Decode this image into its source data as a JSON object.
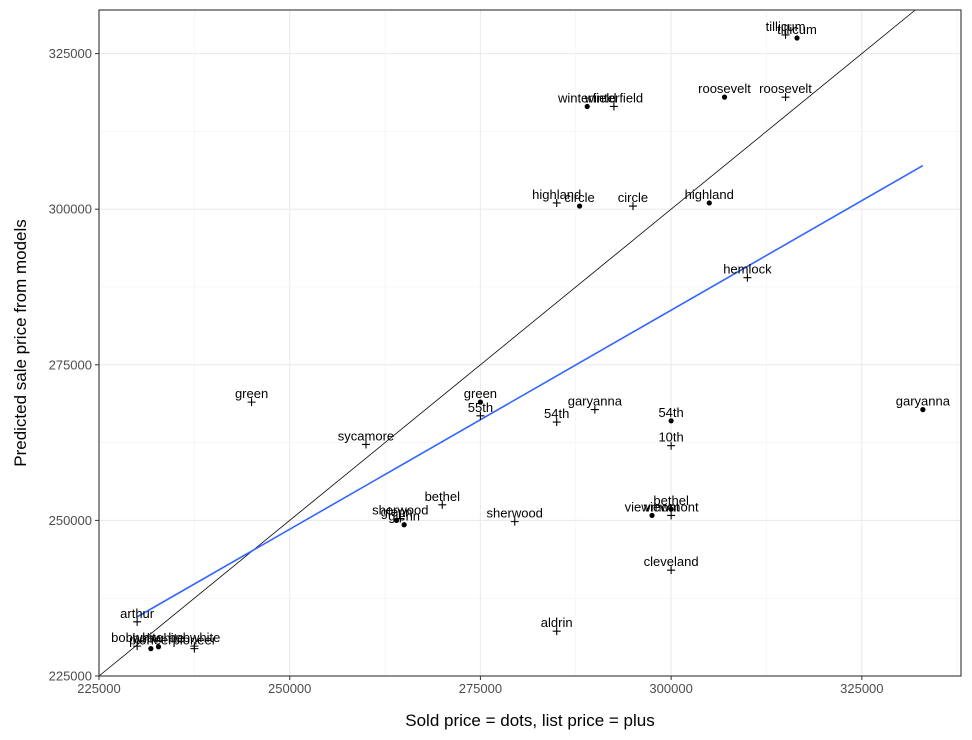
{
  "chart_data": {
    "type": "scatter",
    "title": "",
    "xlabel": "Sold price = dots, list price = plus",
    "ylabel": "Predicted sale price from models",
    "xlim": [
      225000,
      338000
    ],
    "ylim": [
      225000,
      332000
    ],
    "x_ticks": [
      225000,
      250000,
      275000,
      300000,
      325000
    ],
    "y_ticks": [
      225000,
      250000,
      275000,
      300000,
      325000
    ],
    "x_tick_labels": [
      "225000",
      "250000",
      "275000",
      "300000",
      "325000"
    ],
    "y_tick_labels": [
      "225000",
      "250000",
      "275000",
      "300000",
      "325000"
    ],
    "grid": true,
    "legend": "none",
    "reference_line": {
      "label": "y = x",
      "color": "#000000"
    },
    "fit_line": {
      "color": "#3366FF",
      "x": [
        230000,
        333000
      ],
      "y": [
        234500,
        307000
      ]
    },
    "sold_color": "#000000",
    "list_color": "#000000",
    "sold_points": [
      {
        "label": "tillicum",
        "x": 316500,
        "y": 327500
      },
      {
        "label": "winterfield",
        "x": 289000,
        "y": 316500
      },
      {
        "label": "roosevelt",
        "x": 307000,
        "y": 318000
      },
      {
        "label": "circle",
        "x": 288000,
        "y": 300500
      },
      {
        "label": "highland",
        "x": 305000,
        "y": 301000
      },
      {
        "label": "green",
        "x": 275000,
        "y": 269000
      },
      {
        "label": "garyanna",
        "x": 333000,
        "y": 267800
      },
      {
        "label": "54th",
        "x": 300000,
        "y": 266000
      },
      {
        "label": "viewmont",
        "x": 297500,
        "y": 250800
      },
      {
        "label": "bethel",
        "x": 300000,
        "y": 251800
      },
      {
        "label": "glenn",
        "x": 264000,
        "y": 250000
      },
      {
        "label": "glenn",
        "x": 265000,
        "y": 249300
      },
      {
        "label": "bobwhite",
        "x": 232800,
        "y": 229700
      },
      {
        "label": "pioneer",
        "x": 231800,
        "y": 229400
      }
    ],
    "list_points": [
      {
        "label": "tillicum",
        "x": 315000,
        "y": 328000
      },
      {
        "label": "winterfield",
        "x": 292500,
        "y": 316500
      },
      {
        "label": "roosevelt",
        "x": 315000,
        "y": 318000
      },
      {
        "label": "highland",
        "x": 285000,
        "y": 301000
      },
      {
        "label": "circle",
        "x": 295000,
        "y": 300500
      },
      {
        "label": "hemlock",
        "x": 310000,
        "y": 289000
      },
      {
        "label": "green",
        "x": 245000,
        "y": 269000
      },
      {
        "label": "55th",
        "x": 275000,
        "y": 266800
      },
      {
        "label": "54th",
        "x": 285000,
        "y": 265800
      },
      {
        "label": "garyanna",
        "x": 290000,
        "y": 267800
      },
      {
        "label": "sycamore",
        "x": 260000,
        "y": 262200
      },
      {
        "label": "10th",
        "x": 300000,
        "y": 262000
      },
      {
        "label": "bethel",
        "x": 270000,
        "y": 252500
      },
      {
        "label": "sherwood",
        "x": 264500,
        "y": 250300
      },
      {
        "label": "sherwood",
        "x": 279500,
        "y": 249800
      },
      {
        "label": "viewmont",
        "x": 300000,
        "y": 250800
      },
      {
        "label": "cleveland",
        "x": 300000,
        "y": 242000
      },
      {
        "label": "aldrin",
        "x": 285000,
        "y": 232200
      },
      {
        "label": "arthur",
        "x": 230000,
        "y": 233700
      },
      {
        "label": "bobwhite",
        "x": 237500,
        "y": 229800
      },
      {
        "label": "pioneer",
        "x": 237500,
        "y": 229400
      },
      {
        "label": "bobwhite",
        "x": 230000,
        "y": 229800
      }
    ]
  }
}
